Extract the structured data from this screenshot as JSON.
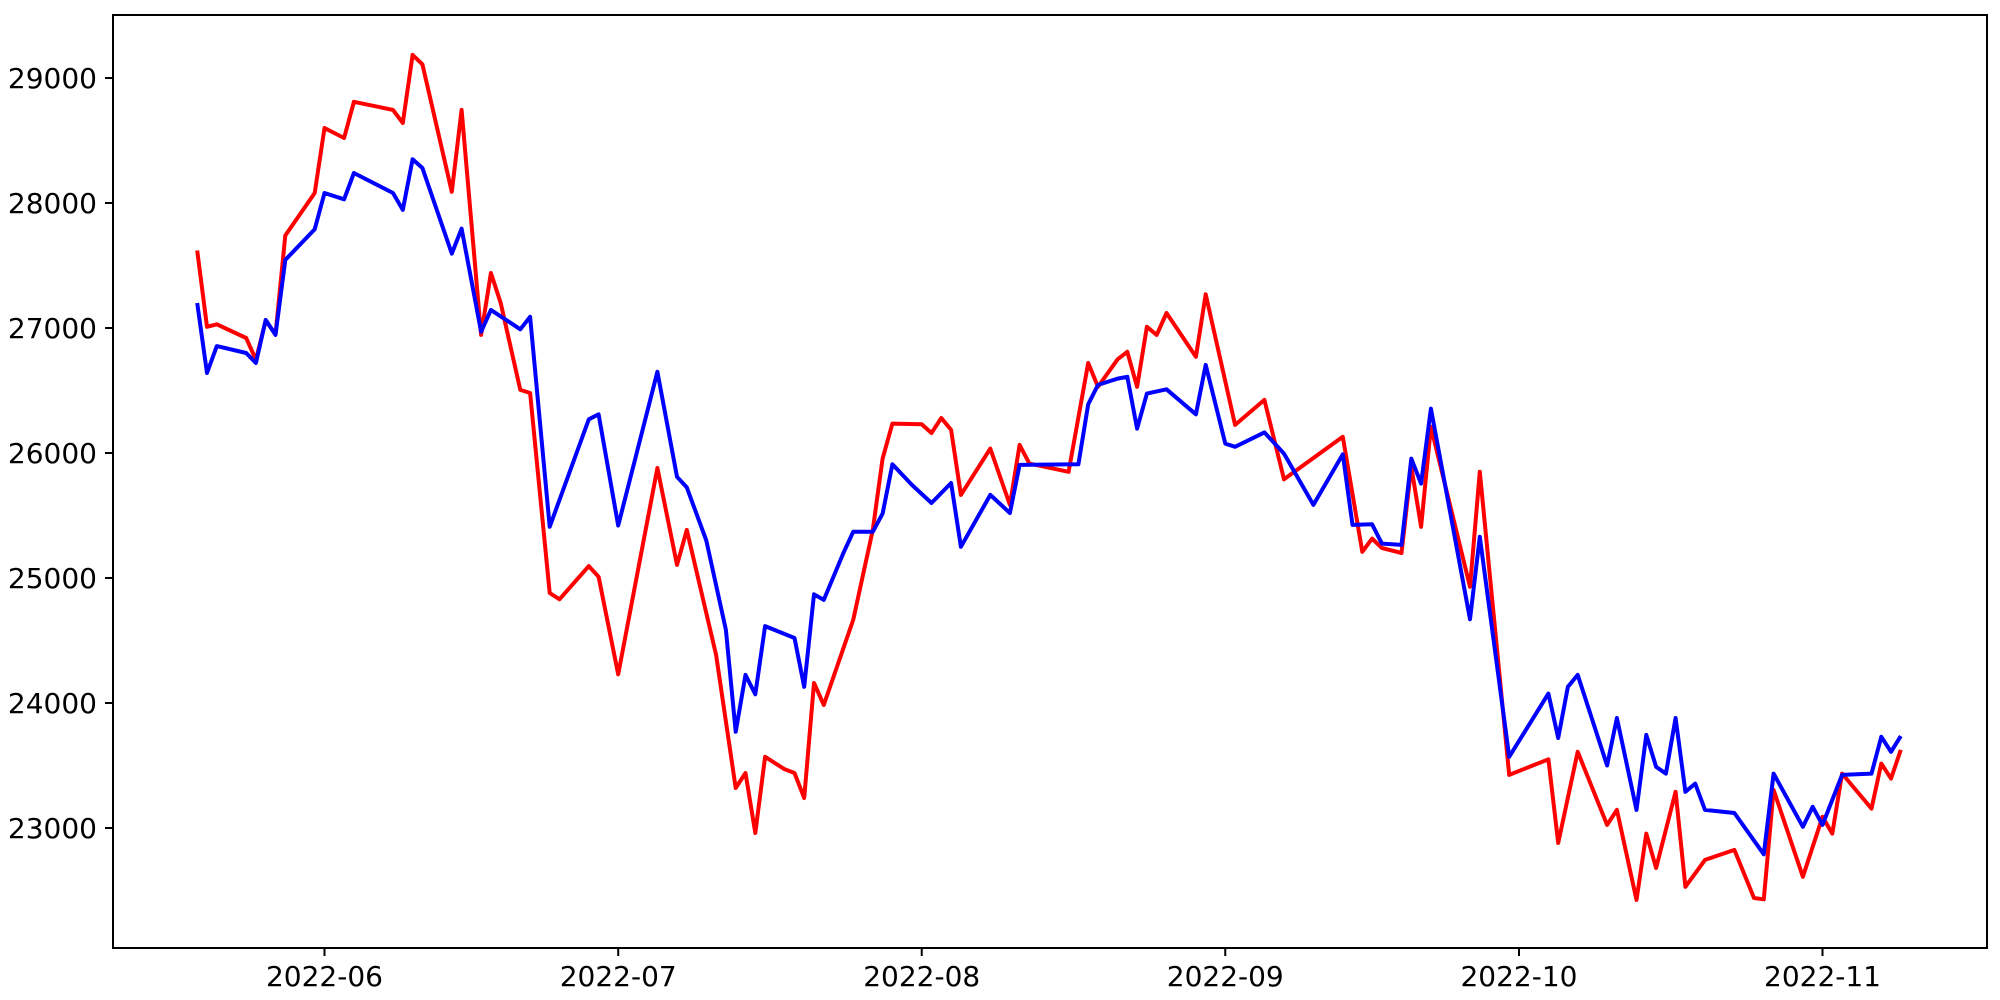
{
  "chart_data": {
    "type": "line",
    "title": "",
    "xlabel": "",
    "ylabel": "",
    "grid": false,
    "legend": "none",
    "background_color": "#ffffff",
    "spine_color": "#000000",
    "x_unit": "date",
    "start_date": "2022-05-19",
    "end_date": "2022-11-09",
    "x_day_span": 174,
    "xlim_days": [
      -8.6,
      182.8
    ],
    "ylim": [
      22040,
      29504
    ],
    "yticks": [
      23000,
      24000,
      25000,
      26000,
      27000,
      28000,
      29000
    ],
    "xticks": [
      {
        "label": "2022-06",
        "day": 13
      },
      {
        "label": "2022-07",
        "day": 43
      },
      {
        "label": "2022-08",
        "day": 74
      },
      {
        "label": "2022-09",
        "day": 105
      },
      {
        "label": "2022-10",
        "day": 135
      },
      {
        "label": "2022-11",
        "day": 166
      }
    ],
    "series": [
      {
        "name": "red-line",
        "color": "#ff0000",
        "points": [
          [
            0,
            27620
          ],
          [
            1,
            27010
          ],
          [
            2,
            27030
          ],
          [
            5,
            26920
          ],
          [
            6,
            26745
          ],
          [
            7,
            27060
          ],
          [
            8,
            26950
          ],
          [
            9,
            27740
          ],
          [
            12,
            28080
          ],
          [
            13,
            28600
          ],
          [
            15,
            28520
          ],
          [
            16,
            28810
          ],
          [
            20,
            28745
          ],
          [
            21,
            28640
          ],
          [
            22,
            29185
          ],
          [
            23,
            29110
          ],
          [
            26,
            28090
          ],
          [
            27,
            28745
          ],
          [
            29,
            26945
          ],
          [
            30,
            27440
          ],
          [
            31,
            27200
          ],
          [
            33,
            26505
          ],
          [
            34,
            26480
          ],
          [
            36,
            24880
          ],
          [
            37,
            24830
          ],
          [
            40,
            25095
          ],
          [
            41,
            25010
          ],
          [
            43,
            24230
          ],
          [
            47,
            25880
          ],
          [
            49,
            25105
          ],
          [
            50,
            25385
          ],
          [
            53,
            24385
          ],
          [
            55,
            23320
          ],
          [
            56,
            23440
          ],
          [
            57,
            22960
          ],
          [
            58,
            23570
          ],
          [
            60,
            23470
          ],
          [
            61,
            23440
          ],
          [
            62,
            23240
          ],
          [
            63,
            24160
          ],
          [
            64,
            23985
          ],
          [
            67,
            24665
          ],
          [
            69,
            25385
          ],
          [
            70,
            25955
          ],
          [
            71,
            26235
          ],
          [
            74,
            26230
          ],
          [
            75,
            26160
          ],
          [
            76,
            26280
          ],
          [
            77,
            26185
          ],
          [
            78,
            25665
          ],
          [
            81,
            26035
          ],
          [
            83,
            25585
          ],
          [
            84,
            26065
          ],
          [
            85,
            25915
          ],
          [
            89,
            25850
          ],
          [
            91,
            26720
          ],
          [
            92,
            26530
          ],
          [
            94,
            26750
          ],
          [
            95,
            26810
          ],
          [
            96,
            26530
          ],
          [
            97,
            27010
          ],
          [
            98,
            26945
          ],
          [
            99,
            27120
          ],
          [
            102,
            26770
          ],
          [
            103,
            27270
          ],
          [
            106,
            26225
          ],
          [
            109,
            26425
          ],
          [
            111,
            25790
          ],
          [
            117,
            26130
          ],
          [
            119,
            25210
          ],
          [
            120,
            25315
          ],
          [
            121,
            25240
          ],
          [
            123,
            25200
          ],
          [
            124,
            25890
          ],
          [
            125,
            25410
          ],
          [
            126,
            26210
          ],
          [
            130,
            24930
          ],
          [
            131,
            25850
          ],
          [
            134,
            23425
          ],
          [
            138,
            23550
          ],
          [
            139,
            22880
          ],
          [
            141,
            23610
          ],
          [
            144,
            23025
          ],
          [
            145,
            23145
          ],
          [
            147,
            22425
          ],
          [
            148,
            22955
          ],
          [
            149,
            22680
          ],
          [
            151,
            23290
          ],
          [
            152,
            22530
          ],
          [
            154,
            22745
          ],
          [
            157,
            22825
          ],
          [
            159,
            22440
          ],
          [
            160,
            22430
          ],
          [
            161,
            23305
          ],
          [
            164,
            22610
          ],
          [
            166,
            23090
          ],
          [
            167,
            22955
          ],
          [
            168,
            23435
          ],
          [
            171,
            23155
          ],
          [
            172,
            23515
          ],
          [
            173,
            23395
          ],
          [
            174,
            23625
          ]
        ]
      },
      {
        "name": "blue-line",
        "color": "#0000ff",
        "points": [
          [
            0,
            27200
          ],
          [
            1,
            26640
          ],
          [
            2,
            26855
          ],
          [
            5,
            26800
          ],
          [
            6,
            26720
          ],
          [
            7,
            27065
          ],
          [
            8,
            26945
          ],
          [
            9,
            27545
          ],
          [
            12,
            27790
          ],
          [
            13,
            28080
          ],
          [
            15,
            28030
          ],
          [
            16,
            28240
          ],
          [
            20,
            28080
          ],
          [
            21,
            27945
          ],
          [
            22,
            28350
          ],
          [
            23,
            28280
          ],
          [
            26,
            27595
          ],
          [
            27,
            27795
          ],
          [
            29,
            26970
          ],
          [
            30,
            27145
          ],
          [
            33,
            26990
          ],
          [
            34,
            27090
          ],
          [
            36,
            25410
          ],
          [
            40,
            26270
          ],
          [
            41,
            26310
          ],
          [
            43,
            25420
          ],
          [
            47,
            26650
          ],
          [
            49,
            25810
          ],
          [
            50,
            25725
          ],
          [
            52,
            25300
          ],
          [
            54,
            24585
          ],
          [
            55,
            23770
          ],
          [
            56,
            24225
          ],
          [
            57,
            24070
          ],
          [
            58,
            24615
          ],
          [
            61,
            24520
          ],
          [
            62,
            24130
          ],
          [
            63,
            24870
          ],
          [
            64,
            24825
          ],
          [
            66,
            25200
          ],
          [
            67,
            25370
          ],
          [
            69,
            25370
          ],
          [
            70,
            25515
          ],
          [
            71,
            25910
          ],
          [
            73,
            25745
          ],
          [
            75,
            25600
          ],
          [
            77,
            25760
          ],
          [
            78,
            25250
          ],
          [
            81,
            25665
          ],
          [
            83,
            25520
          ],
          [
            84,
            25905
          ],
          [
            90,
            25910
          ],
          [
            91,
            26390
          ],
          [
            92,
            26545
          ],
          [
            94,
            26595
          ],
          [
            95,
            26610
          ],
          [
            96,
            26195
          ],
          [
            97,
            26475
          ],
          [
            99,
            26510
          ],
          [
            102,
            26310
          ],
          [
            103,
            26705
          ],
          [
            105,
            26075
          ],
          [
            106,
            26050
          ],
          [
            109,
            26165
          ],
          [
            111,
            25995
          ],
          [
            114,
            25585
          ],
          [
            117,
            25990
          ],
          [
            118,
            25425
          ],
          [
            120,
            25430
          ],
          [
            121,
            25275
          ],
          [
            123,
            25265
          ],
          [
            124,
            25955
          ],
          [
            125,
            25755
          ],
          [
            126,
            26355
          ],
          [
            130,
            24670
          ],
          [
            131,
            25330
          ],
          [
            134,
            23570
          ],
          [
            138,
            24075
          ],
          [
            139,
            23720
          ],
          [
            140,
            24130
          ],
          [
            141,
            24225
          ],
          [
            144,
            23500
          ],
          [
            145,
            23880
          ],
          [
            147,
            23145
          ],
          [
            148,
            23745
          ],
          [
            149,
            23490
          ],
          [
            150,
            23435
          ],
          [
            151,
            23880
          ],
          [
            152,
            23290
          ],
          [
            153,
            23355
          ],
          [
            154,
            23145
          ],
          [
            157,
            23120
          ],
          [
            160,
            22790
          ],
          [
            161,
            23435
          ],
          [
            164,
            23010
          ],
          [
            165,
            23170
          ],
          [
            166,
            23025
          ],
          [
            168,
            23425
          ],
          [
            171,
            23435
          ],
          [
            172,
            23730
          ],
          [
            173,
            23610
          ],
          [
            174,
            23735
          ]
        ]
      }
    ]
  }
}
